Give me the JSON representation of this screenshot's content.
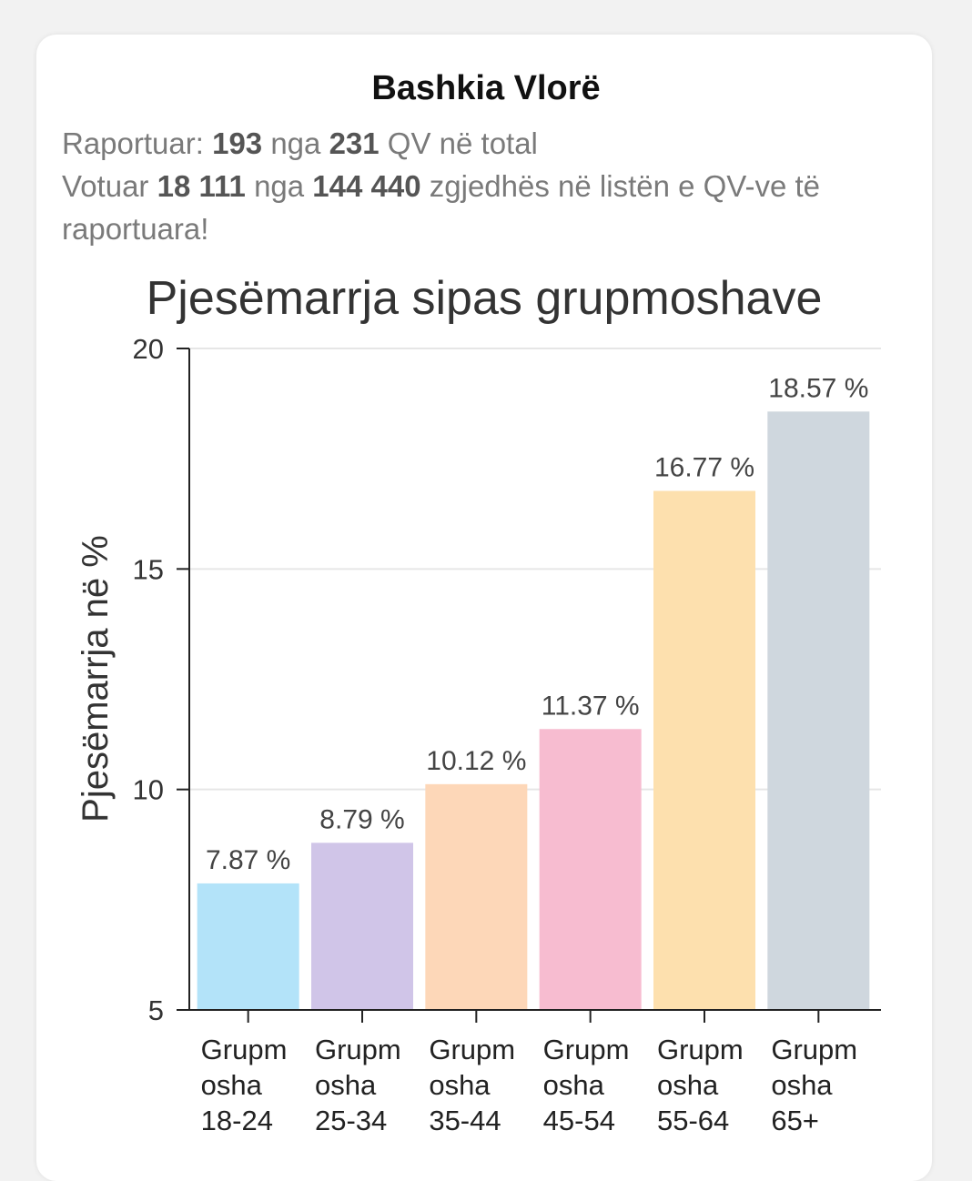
{
  "header": {
    "title": "Bashkia Vlorë"
  },
  "stats": {
    "reported_label": "Raportuar:",
    "reported_count": "193",
    "reported_of": "nga",
    "reported_total": "231",
    "reported_suffix": "QV në total",
    "voted_label": "Votuar",
    "voted_count": "18 111",
    "voted_of": "nga",
    "voted_total": "144 440",
    "voted_suffix": "zgjedhës në listën e QV-ve të raportuara!"
  },
  "chart_data": {
    "type": "bar",
    "title": "Pjesëmarrja sipas grupmoshave",
    "xlabel": "",
    "ylabel": "Pjesëmarrja në %",
    "ylim": [
      5,
      20
    ],
    "yticks": [
      5,
      10,
      15,
      20
    ],
    "grid": true,
    "categories": [
      [
        "Grupm",
        "osha",
        "18-24"
      ],
      [
        "Grupm",
        "osha",
        "25-34"
      ],
      [
        "Grupm",
        "osha",
        "35-44"
      ],
      [
        "Grupm",
        "osha",
        "45-54"
      ],
      [
        "Grupm",
        "osha",
        "55-64"
      ],
      [
        "Grupm",
        "osha",
        "65+"
      ]
    ],
    "values": [
      7.87,
      8.79,
      10.12,
      11.37,
      16.77,
      18.57
    ],
    "value_labels": [
      "7.87 %",
      "8.79 %",
      "10.12 %",
      "11.37 %",
      "16.77 %",
      "18.57 %"
    ],
    "colors": [
      "#b3e3f9",
      "#d0c5e8",
      "#fdd7b8",
      "#f7bcd0",
      "#fde0ae",
      "#cfd7de"
    ]
  }
}
